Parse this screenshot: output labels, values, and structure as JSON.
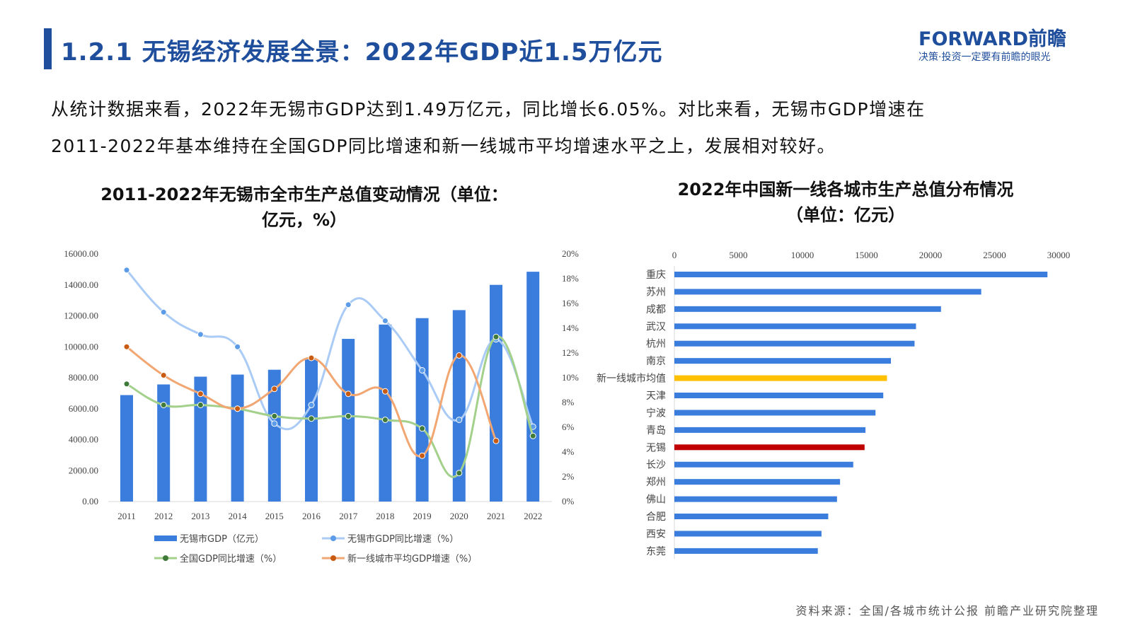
{
  "header": {
    "title": "1.2.1 无锡经济发展全景：2022年GDP近1.5万亿元",
    "logo_text": "FORWARD前瞻",
    "logo_slogan": "决策·投资一定要有前瞻的眼光",
    "brand_color": "#1f4e9c"
  },
  "summary": {
    "line1": "从统计数据来看，2022年无锡市GDP达到1.49万亿元，同比增长6.05%。对比来看，无锡市GDP增速在",
    "line2": "2011-2022年基本维持在全国GDP同比增速和新一线城市平均增速水平之上，发展相对较好。"
  },
  "source": "资料来源：全国/各城市统计公报 前瞻产业研究院整理",
  "chart_data": [
    {
      "type": "bar+line",
      "title_line1": "2011-2022年无锡市全市生产总值变动情况（单位：",
      "title_line2": "亿元，%）",
      "categories": [
        "2011",
        "2012",
        "2013",
        "2014",
        "2015",
        "2016",
        "2017",
        "2018",
        "2019",
        "2020",
        "2021",
        "2022"
      ],
      "y_left": {
        "range": [
          0,
          16000
        ],
        "ticks": [
          "0.00",
          "2000.00",
          "4000.00",
          "6000.00",
          "8000.00",
          "10000.00",
          "12000.00",
          "14000.00",
          "16000.00"
        ]
      },
      "y_right": {
        "range": [
          0,
          20
        ],
        "ticks": [
          "0%",
          "2%",
          "4%",
          "6%",
          "8%",
          "10%",
          "12%",
          "14%",
          "16%",
          "18%",
          "20%"
        ]
      },
      "grid": false,
      "legend_position": "bottom",
      "series": [
        {
          "name": "无锡市GDP（亿元）",
          "kind": "bar",
          "axis": "left",
          "color": "#3b7ddd",
          "values": [
            6880,
            7568,
            8070,
            8205,
            8518,
            9210,
            10512,
            11438,
            11852,
            12370,
            14003,
            14851
          ]
        },
        {
          "name": "无锡市GDP同比增速（%）",
          "kind": "line",
          "axis": "right",
          "color": "#a9cbf5",
          "marker": "#5b9be8",
          "values": [
            18.7,
            15.3,
            13.5,
            12.5,
            6.3,
            7.8,
            15.9,
            14.6,
            10.6,
            6.6,
            13.1,
            6.05
          ]
        },
        {
          "name": "全国GDP同比增速（%）",
          "kind": "line",
          "axis": "right",
          "color": "#a3d08a",
          "marker": "#3f7a3a",
          "values": [
            9.5,
            7.8,
            7.8,
            7.5,
            6.9,
            6.7,
            6.9,
            6.6,
            5.9,
            2.3,
            13.3,
            5.3
          ]
        },
        {
          "name": "新一线城市平均GDP增速（%）",
          "kind": "line",
          "axis": "right",
          "color": "#f2a672",
          "marker": "#c85a12",
          "values": [
            12.5,
            10.2,
            8.7,
            7.5,
            9.1,
            11.6,
            8.7,
            8.9,
            3.7,
            11.8,
            4.9,
            null
          ]
        }
      ]
    },
    {
      "type": "bar",
      "orientation": "horizontal",
      "title_line1": "2022年中国新一线各城市生产总值分布情况",
      "title_line2": "（单位：亿元）",
      "x_axis": {
        "range": [
          0,
          30000
        ],
        "ticks": [
          "0",
          "5000",
          "10000",
          "15000",
          "20000",
          "25000",
          "30000"
        ],
        "position": "top"
      },
      "grid": false,
      "categories": [
        "重庆",
        "苏州",
        "成都",
        "武汉",
        "杭州",
        "南京",
        "新一线城市均值",
        "天津",
        "宁波",
        "青岛",
        "无锡",
        "长沙",
        "郑州",
        "佛山",
        "合肥",
        "西安",
        "东莞"
      ],
      "values": [
        29129,
        23958,
        20818,
        18866,
        18753,
        16907,
        16600,
        16311,
        15704,
        14921,
        14851,
        13966,
        12935,
        12698,
        12013,
        11487,
        11200
      ],
      "colors": {
        "default": "#3b7ddd",
        "新一线城市均值": "#ffc000",
        "无锡": "#c00000"
      }
    }
  ]
}
